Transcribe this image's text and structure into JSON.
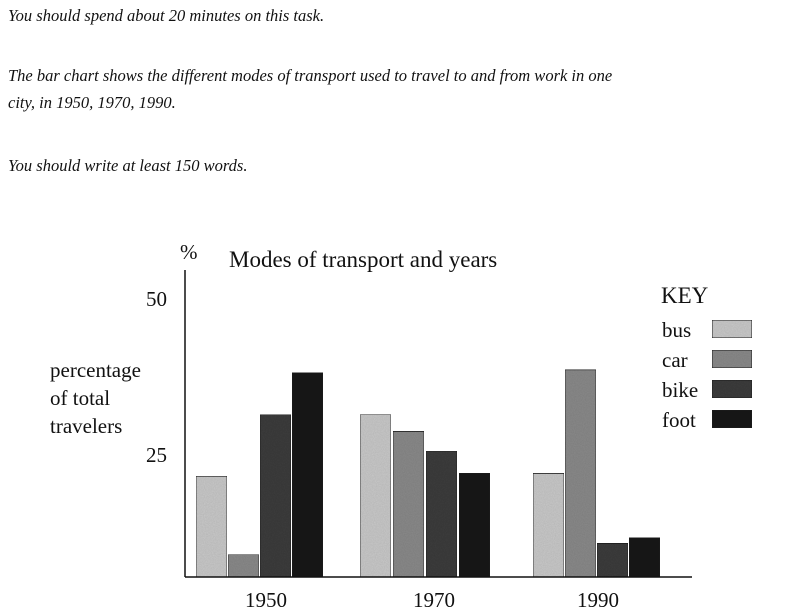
{
  "task": {
    "time": "You should spend about 20 minutes on this task.",
    "description_line1": "The bar chart shows the different modes of transport used to travel to and from work in one",
    "description_line2": "city, in 1950, 1970, 1990.",
    "word_count": "You should write at least 150 words."
  },
  "chart_data": {
    "type": "bar",
    "title": "Modes of transport and years",
    "unit_label": "%",
    "ylabel": [
      "percentage",
      "of total",
      "travelers"
    ],
    "yticks": [
      "50",
      "25"
    ],
    "ytick_values": [
      50,
      25
    ],
    "ylim": [
      0,
      50
    ],
    "categories": [
      "1950",
      "1970",
      "1990"
    ],
    "legend_title": "KEY",
    "legend_position": "right",
    "grid": false,
    "series": [
      {
        "name": "bus",
        "color": "#c9c9c9",
        "values": [
          18,
          29,
          18.5
        ]
      },
      {
        "name": "car",
        "color": "#8a8a8a",
        "values": [
          4,
          26,
          37
        ]
      },
      {
        "name": "bike",
        "color": "#3e3e3e",
        "values": [
          29,
          22.5,
          6
        ]
      },
      {
        "name": "foot",
        "color": "#1c1c1c",
        "values": [
          36.5,
          18.5,
          7
        ]
      }
    ]
  }
}
